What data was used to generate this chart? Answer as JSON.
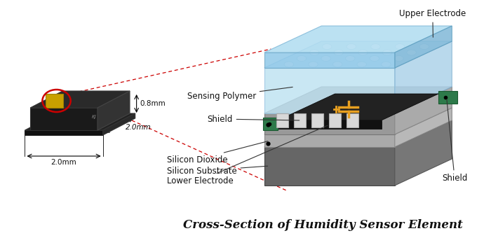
{
  "title": "Cross-Section of Humidity Sensor Element",
  "title_fontsize": 12,
  "background_color": "#ffffff",
  "labels": {
    "upper_electrode": "Upper Electrode",
    "sensing_polymer": "Sensing Polymer",
    "shield_top": "Shield",
    "silicon_dioxide": "Silicon Dioxide",
    "silicon_substrate": "Silicon Substrate",
    "lower_electrode": "Lower Electrode",
    "shield_bottom": "Shield",
    "dim_08": "0.8mm",
    "dim_20a": "2.0mm",
    "dim_20b": "2.0mm"
  },
  "colors": {
    "bg": "#ffffff",
    "sub_front": "#666666",
    "sub_top": "#888888",
    "sub_right": "#777777",
    "sio2_front": "#aaaaaa",
    "sio2_top": "#c0c0c0",
    "sio2_right": "#b8b8b8",
    "black_layer": "#111111",
    "black_top": "#222222",
    "plat_front": "#999999",
    "plat_top": "#bbbbbb",
    "plat_right": "#aaaaaa",
    "shield_sq": "#d8d8d8",
    "shield_sq_edge": "#aaaaaa",
    "green_pad": "#2d7a4a",
    "green_pad_edge": "#1a5a30",
    "orange": "#e8a020",
    "pol_front": "#b8dff0",
    "pol_top": "#cce8f5",
    "pol_right": "#a8d0e8",
    "pol_edge": "#90c0e0",
    "dot_fill": "#ffffff",
    "dot_edge": "#aaccdd",
    "ue_front": "#90c8e8",
    "ue_top": "#b0dcf0",
    "ue_right": "#80b8d8",
    "ue_edge": "#70a8c8",
    "chip_body": "#1a1a1a",
    "chip_top": "#2a2a2a",
    "chip_right": "#333333",
    "chip_ledge": "#111111",
    "gold_pad": "#c8a000",
    "gold_pad_edge": "#a08000",
    "red_circle": "#cc0000",
    "dashed_red": "#cc0000",
    "anno_line": "#333333",
    "text_main": "#111111",
    "chip_text": "#888888"
  }
}
